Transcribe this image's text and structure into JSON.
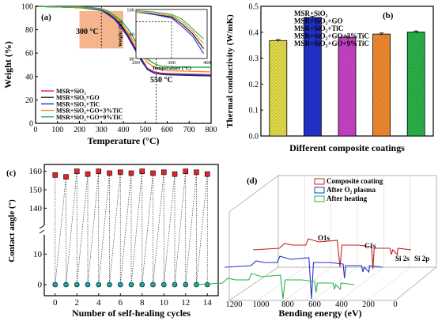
{
  "chart_data": [
    {
      "panel": "(a)",
      "type": "line",
      "xlabel": "Temperature (°C)",
      "ylabel": "Weight (%)",
      "xlim": [
        0,
        800
      ],
      "ylim": [
        0,
        100
      ],
      "x_ticks": [
        "0",
        "100",
        "200",
        "300",
        "400",
        "500",
        "600",
        "700",
        "800"
      ],
      "y_ticks": [
        "0",
        "20",
        "40",
        "60",
        "80",
        "100"
      ],
      "annotations": [
        "300 °C",
        "550 °C"
      ],
      "legend_position": "lower-left",
      "series": [
        {
          "name": "MSR+SiO₂",
          "color": "#e8222b",
          "x": [
            0,
            100,
            200,
            250,
            300,
            330,
            360,
            390,
            420,
            450,
            480,
            510,
            540,
            570,
            600,
            700,
            800
          ],
          "y": [
            100,
            99.5,
            99,
            98,
            97,
            94,
            90,
            84,
            76,
            66,
            56,
            47,
            44,
            43,
            42.5,
            42,
            41.5
          ]
        },
        {
          "name": "MSR+SiO₂+GO",
          "color": "#222222",
          "x": [
            0,
            100,
            200,
            250,
            300,
            330,
            360,
            390,
            420,
            450,
            480,
            510,
            540,
            570,
            600,
            700,
            800
          ],
          "y": [
            100,
            99.5,
            99,
            98,
            97,
            94,
            90,
            84,
            75,
            65,
            55,
            46,
            43,
            42,
            41.5,
            41,
            40.5
          ]
        },
        {
          "name": "MSR+SiO₂+TiC",
          "color": "#2233cc",
          "x": [
            0,
            100,
            200,
            250,
            300,
            330,
            360,
            390,
            420,
            450,
            480,
            510,
            540,
            570,
            600,
            700,
            800
          ],
          "y": [
            100,
            99.5,
            99,
            98,
            96.5,
            93,
            89,
            82,
            74,
            64,
            54,
            46,
            43,
            42.5,
            42,
            41.5,
            41
          ]
        },
        {
          "name": "MSR+SiO₂+GO+3%TiC",
          "color": "#f28a2e",
          "x": [
            0,
            100,
            200,
            250,
            300,
            330,
            360,
            390,
            420,
            450,
            480,
            510,
            540,
            570,
            600,
            700,
            800
          ],
          "y": [
            100,
            99.5,
            99,
            98.5,
            97.5,
            95,
            91,
            86,
            78,
            69,
            60,
            52,
            48,
            46,
            45,
            44.5,
            44
          ]
        },
        {
          "name": "MSR+SiO₂+GO+9%TiC",
          "color": "#2ab34a",
          "x": [
            0,
            100,
            200,
            250,
            300,
            330,
            360,
            390,
            420,
            450,
            480,
            510,
            540,
            570,
            600,
            700,
            800
          ],
          "y": [
            100,
            99.5,
            99.5,
            99,
            98,
            96,
            92,
            88,
            81,
            72,
            63,
            55,
            51,
            49,
            48.5,
            48,
            48
          ]
        }
      ],
      "inset": {
        "xlabel": "Temperature (°C)",
        "ylabel": "Weight (%)",
        "xlim": [
          200,
          400
        ],
        "ylim": [
          80,
          100
        ],
        "x_ticks": [
          "200",
          "300",
          "400"
        ],
        "y_ticks": [
          "80",
          "90",
          "100"
        ]
      }
    },
    {
      "panel": "(b)",
      "type": "bar",
      "xlabel": "Different composite coatings",
      "ylabel": "Thermal conductivity (W/mK)",
      "ylim": [
        0.0,
        0.5
      ],
      "y_ticks": [
        "0.0",
        "0.1",
        "0.2",
        "0.3",
        "0.4",
        "0.5"
      ],
      "categories": [
        "MSR+SiO₂",
        "MSR+SiO₂+GO",
        "MSR+SiO₂+TiC",
        "MSR+SiO₂+GO+3%TiC",
        "MSR+SiO₂+GO+9%TiC"
      ],
      "values": [
        0.368,
        0.457,
        0.381,
        0.393,
        0.401
      ],
      "errors": [
        0.004,
        0.005,
        0.004,
        0.004,
        0.004
      ],
      "colors": [
        "#e3dc4a",
        "#2233cc",
        "#c842c8",
        "#f28a2e",
        "#2ab34a"
      ],
      "legend_position": "top"
    },
    {
      "panel": "(c)",
      "type": "scatter",
      "xlabel": "Number of self-healing cycles",
      "ylabel": "Contact angle (°)",
      "xlim": [
        -1,
        15
      ],
      "x_ticks": [
        "0",
        "2",
        "4",
        "6",
        "8",
        "10",
        "12",
        "14"
      ],
      "y_ticks_upper": [
        "140",
        "150",
        "160"
      ],
      "y_ticks_lower": [
        "0",
        "10"
      ],
      "broken_axis": true,
      "x": [
        0,
        1,
        2,
        3,
        4,
        5,
        6,
        7,
        8,
        9,
        10,
        11,
        12,
        13,
        14,
        0,
        1,
        2,
        3,
        4,
        5,
        6,
        7,
        8,
        9,
        10,
        11,
        12,
        13,
        14
      ],
      "high_points": {
        "x": [
          0,
          1,
          2,
          3,
          4,
          5,
          6,
          7,
          8,
          9,
          10,
          11,
          12,
          13,
          14
        ],
        "y": [
          158,
          157,
          160,
          158.5,
          160,
          159,
          159.5,
          159,
          160,
          159,
          159.5,
          158.5,
          160,
          159.5,
          158.5
        ],
        "color": "#e8222b"
      },
      "low_points": {
        "x": [
          1,
          3,
          5,
          7,
          9,
          11,
          13,
          0,
          2,
          4,
          6,
          8,
          10,
          12,
          14
        ],
        "y": [
          0,
          0,
          0,
          0,
          0,
          0,
          0,
          0,
          0,
          0,
          0,
          0,
          0,
          0,
          0
        ],
        "color": "#1aa6a6"
      }
    },
    {
      "panel": "(d)",
      "type": "line",
      "xlabel": "Bending energy (eV)",
      "x_ticks": [
        "1200",
        "1000",
        "800",
        "600",
        "400",
        "200",
        "0"
      ],
      "peak_labels": [
        "O1s",
        "C1s",
        "Si 2s",
        "Si 2p"
      ],
      "series": [
        {
          "name": "Composite coating",
          "color": "#c0201e"
        },
        {
          "name": "After O₂ plasma",
          "color": "#2233cc"
        },
        {
          "name": "After heating",
          "color": "#2ab34a"
        }
      ],
      "legend_position": "top-right"
    }
  ]
}
